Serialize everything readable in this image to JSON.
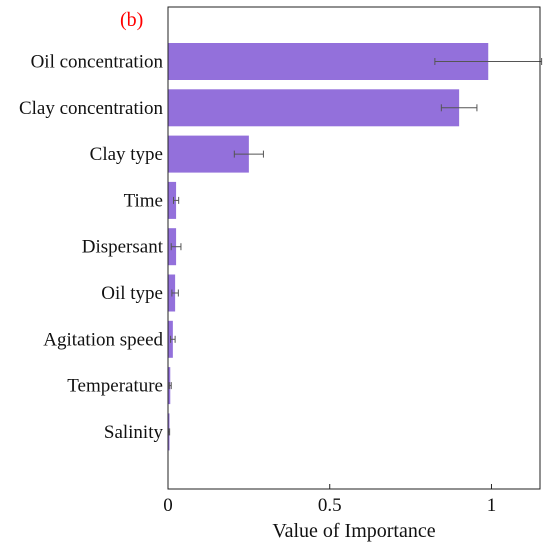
{
  "panel_label": "(b)",
  "colors": {
    "bar": "#9370DB",
    "error_bar": "#555555",
    "panel_label": "#FF0000",
    "axis": "#222222"
  },
  "chart_data": {
    "type": "bar",
    "orientation": "horizontal",
    "categories": [
      "Oil concentration",
      "Clay concentration",
      "Clay type",
      "Time",
      "Dispersant",
      "Oil type",
      "Agitation speed",
      "Temperature",
      "Salinity"
    ],
    "values": [
      0.99,
      0.9,
      0.25,
      0.025,
      0.025,
      0.022,
      0.015,
      0.007,
      0.003
    ],
    "errors": [
      0.165,
      0.055,
      0.045,
      0.008,
      0.015,
      0.01,
      0.007,
      0.003,
      0.002
    ],
    "xlabel": "Value of Importance",
    "ylabel": "",
    "xlim": [
      0,
      1.15
    ],
    "xticks": [
      0,
      0.5,
      1
    ],
    "xtick_labels": [
      "0",
      "0.5",
      "1"
    ],
    "grid": false,
    "legend": false
  }
}
